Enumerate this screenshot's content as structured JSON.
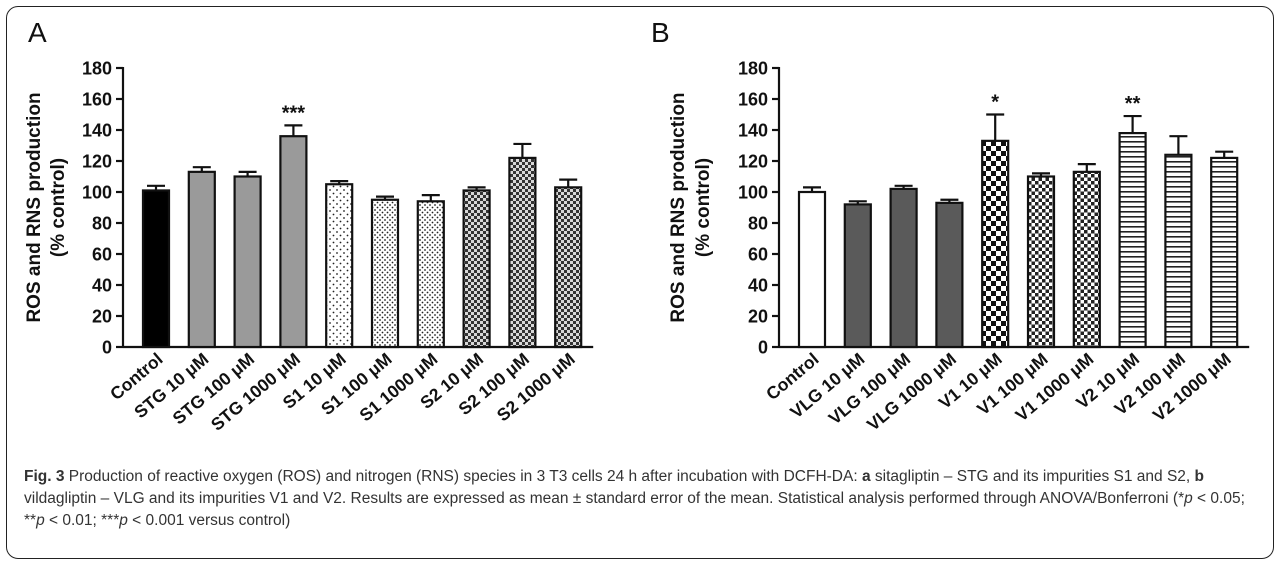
{
  "colors": {
    "black": "#000000",
    "gray": "#9a9a9a",
    "darkgray": "#5a5a5a",
    "white": "#ffffff"
  },
  "chart_data": [
    {
      "type": "bar",
      "panel_label": "A",
      "ylabel_lines": [
        "ROS and RNS production",
        "(% control)"
      ],
      "ylim": [
        0,
        180
      ],
      "yticks": [
        0,
        20,
        40,
        60,
        80,
        100,
        120,
        140,
        160,
        180
      ],
      "ytick_labels": [
        "0",
        "20",
        "40",
        "60",
        "80",
        "100",
        "120",
        "140",
        "160",
        "180"
      ],
      "categories": [
        "Control",
        "STG 10 μM",
        "STG 100 μM",
        "STG 1000 μM",
        "S1 10 μM",
        "S1 100 μM",
        "S1 1000 μM",
        "S2 10 μM",
        "S2 100 μM",
        "S2 1000 μM"
      ],
      "values": [
        101,
        113,
        110,
        136,
        105,
        95,
        94,
        101,
        122,
        103
      ],
      "errors": [
        3,
        3,
        3,
        7,
        2,
        2,
        4,
        2,
        9,
        5
      ],
      "fills": [
        "black",
        "gray",
        "gray",
        "gray",
        "dots-sparse",
        "dots-medium",
        "dots-medium",
        "checker-fine",
        "checker-fine",
        "checker-fine"
      ],
      "annotations": [
        "",
        "",
        "",
        "***",
        "",
        "",
        "",
        "",
        "",
        ""
      ],
      "grid": false
    },
    {
      "type": "bar",
      "panel_label": "B",
      "ylabel_lines": [
        "ROS and RNS production",
        "(% control)"
      ],
      "ylim": [
        0,
        180
      ],
      "yticks": [
        0,
        20,
        40,
        60,
        80,
        100,
        120,
        140,
        160,
        180
      ],
      "ytick_labels": [
        "0",
        "20",
        "40",
        "60",
        "80",
        "100",
        "120",
        "140",
        "160",
        "180"
      ],
      "categories": [
        "Control",
        "VLG 10 μM",
        "VLG 100 μM",
        "VLG 1000 μM",
        "V1 10 μM",
        "V1 100 μM",
        "V1 1000 μM",
        "V2 10 μM",
        "V2 100 μM",
        "V2 1000 μM"
      ],
      "values": [
        100,
        92,
        102,
        93,
        133,
        110,
        113,
        138,
        124,
        122
      ],
      "errors": [
        3,
        2,
        2,
        2,
        17,
        2,
        5,
        11,
        12,
        4
      ],
      "fills": [
        "white",
        "darkgray",
        "darkgray",
        "darkgray",
        "checker-large",
        "checker-medium",
        "checker-medium",
        "hlines",
        "hlines",
        "hlines"
      ],
      "annotations": [
        "",
        "",
        "",
        "",
        "*",
        "",
        "",
        "**",
        "",
        ""
      ],
      "grid": false
    }
  ],
  "caption": {
    "fig_label": "Fig. 3",
    "parts": [
      {
        "t": " Production of reactive oxygen (ROS) and nitrogen (RNS) species in 3 T3 cells 24 h after incubation with DCFH-DA: ",
        "s": "n"
      },
      {
        "t": "a",
        "s": "b"
      },
      {
        "t": " sitagliptin – STG and its impurities S1 and S2, ",
        "s": "n"
      },
      {
        "t": "b",
        "s": "b"
      },
      {
        "t": " vildagliptin – VLG and its impurities V1 and V2. Results are expressed as mean ± standard error of the mean. Statistical analysis performed through ANOVA/Bonferroni (*",
        "s": "n"
      },
      {
        "t": "p",
        "s": "i"
      },
      {
        "t": " < 0.05; **",
        "s": "n"
      },
      {
        "t": "p",
        "s": "i"
      },
      {
        "t": " < 0.01; ***",
        "s": "n"
      },
      {
        "t": "p",
        "s": "i"
      },
      {
        "t": " < 0.001 versus control)",
        "s": "n"
      }
    ]
  }
}
